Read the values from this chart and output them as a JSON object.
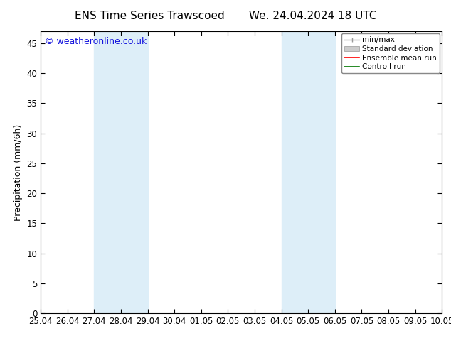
{
  "title_left": "ENS Time Series Trawscoed",
  "title_right": "We. 24.04.2024 18 UTC",
  "ylabel": "Precipitation (mm/6h)",
  "watermark": "© weatheronline.co.uk",
  "ylim": [
    0,
    47
  ],
  "yticks": [
    0,
    5,
    10,
    15,
    20,
    25,
    30,
    35,
    40,
    45
  ],
  "xtick_labels": [
    "25.04",
    "26.04",
    "27.04",
    "28.04",
    "29.04",
    "30.04",
    "01.05",
    "02.05",
    "03.05",
    "04.05",
    "05.05",
    "06.05",
    "07.05",
    "08.05",
    "09.05",
    "10.05"
  ],
  "shaded_regions": [
    {
      "xstart": 2,
      "xend": 4,
      "color": "#ddeef8"
    },
    {
      "xstart": 9,
      "xend": 11,
      "color": "#ddeef8"
    }
  ],
  "background_color": "#ffffff",
  "title_fontsize": 11,
  "label_fontsize": 9,
  "tick_fontsize": 8.5,
  "watermark_color": "#1515dd",
  "watermark_fontsize": 9,
  "legend_fontsize": 7.5
}
